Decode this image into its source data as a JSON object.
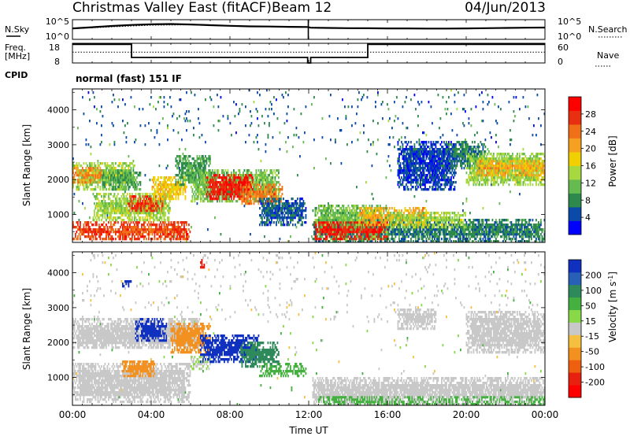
{
  "header": {
    "station": "Christmas Valley East (fitACF)",
    "beam": "Beam 12",
    "date": "04/Jun/2013"
  },
  "chart_data": [
    {
      "type": "line",
      "panel": "noise",
      "left_label": "N.Sky",
      "right_label": "N.Search",
      "left_ticks": [
        "10^5",
        "10^0"
      ],
      "right_ticks": [
        "10^5",
        "10^0"
      ],
      "series": [
        {
          "name": "N.Sky",
          "style": "solid",
          "x": [
            0,
            1,
            2,
            3,
            4,
            5,
            6,
            7,
            8,
            9,
            10,
            11,
            11.95,
            12.1,
            13,
            14,
            15,
            16,
            17,
            18,
            19,
            20,
            21,
            22,
            23,
            24
          ],
          "y": [
            600,
            1200,
            2500,
            4500,
            6500,
            8000,
            6000,
            4000,
            2800,
            2000,
            1800,
            1500,
            1400,
            900,
            800,
            700,
            650,
            600,
            600,
            550,
            550,
            600,
            700,
            800,
            900,
            1000
          ]
        },
        {
          "name": "N.Search",
          "style": "dotted",
          "x": [
            0,
            2,
            4,
            6,
            8,
            10,
            12,
            14,
            16,
            18,
            20,
            22,
            24
          ],
          "y": [
            500,
            1500,
            4000,
            5000,
            3000,
            1800,
            1200,
            700,
            550,
            500,
            550,
            700,
            900
          ]
        }
      ]
    },
    {
      "type": "line",
      "panel": "frequency-nave",
      "left_label": "Freq. [MHz]",
      "left_ticks": [
        18,
        8
      ],
      "right_label": "Nave",
      "right_ticks": [
        60,
        0
      ],
      "extra_label": "CPID",
      "cpid_text": "normal (fast) 151 IF",
      "series": [
        {
          "name": "Freq.",
          "style": "solid",
          "x": [
            0,
            3,
            3,
            11.95,
            11.95,
            12.1,
            12.1,
            15,
            15,
            24
          ],
          "y": [
            17.5,
            17.5,
            10.8,
            10.8,
            8,
            8,
            10.8,
            10.8,
            17.5,
            17.5
          ]
        },
        {
          "name": "Nave",
          "style": "dotted",
          "x": [
            0,
            24
          ],
          "y": [
            33,
            33
          ]
        }
      ]
    },
    {
      "type": "heatmap",
      "panel": "power",
      "x_range_hours": [
        0,
        24
      ],
      "ylabel": "Slant Range [km]",
      "y_ticks": [
        1000,
        2000,
        3000,
        4000
      ],
      "ylim": [
        200,
        4600
      ],
      "colorbar_label": "Power [dB]",
      "colorbar_ticks": [
        4,
        8,
        12,
        16,
        20,
        24,
        28
      ],
      "colorbar_colors": [
        "#0000ff",
        "#0a4aa8",
        "#2e8a4c",
        "#66bb50",
        "#a8d840",
        "#f0d000",
        "#f5a020",
        "#f07018",
        "#e83010",
        "#ff0000"
      ],
      "regions": [
        {
          "t": [
            0.0,
            3.2
          ],
          "r": [
            1700,
            2500
          ],
          "v": 14
        },
        {
          "t": [
            0.0,
            1.5
          ],
          "r": [
            1900,
            2350
          ],
          "v": 22
        },
        {
          "t": [
            1.5,
            3.5
          ],
          "r": [
            1700,
            2300
          ],
          "v": 10
        },
        {
          "t": [
            0.0,
            6.0
          ],
          "r": [
            300,
            800
          ],
          "v": 26
        },
        {
          "t": [
            2.5,
            5.5
          ],
          "r": [
            400,
            700
          ],
          "v": 24
        },
        {
          "t": [
            1.0,
            5.0
          ],
          "r": [
            800,
            1600
          ],
          "v": 14
        },
        {
          "t": [
            2.8,
            4.6
          ],
          "r": [
            1050,
            1550
          ],
          "v": 26
        },
        {
          "t": [
            4.0,
            5.8
          ],
          "r": [
            1400,
            2100
          ],
          "v": 18
        },
        {
          "t": [
            5.2,
            7.0
          ],
          "r": [
            1800,
            2700
          ],
          "v": 10
        },
        {
          "t": [
            6.0,
            10.5
          ],
          "r": [
            1350,
            2300
          ],
          "v": 12
        },
        {
          "t": [
            6.8,
            9.2
          ],
          "r": [
            1450,
            2150
          ],
          "v": 28
        },
        {
          "t": [
            8.5,
            10.7
          ],
          "r": [
            1300,
            1900
          ],
          "v": 23
        },
        {
          "t": [
            9.5,
            12.0
          ],
          "r": [
            700,
            1500
          ],
          "v": 6
        },
        {
          "t": [
            12.2,
            24.0
          ],
          "r": [
            200,
            900
          ],
          "v": 8
        },
        {
          "t": [
            12.3,
            16.0
          ],
          "r": [
            300,
            1300
          ],
          "v": 12
        },
        {
          "t": [
            12.3,
            16.0
          ],
          "r": [
            300,
            800
          ],
          "v": 28
        },
        {
          "t": [
            14.5,
            18.0
          ],
          "r": [
            700,
            1200
          ],
          "v": 20
        },
        {
          "t": [
            16.0,
            20.0
          ],
          "r": [
            600,
            1100
          ],
          "v": 14
        },
        {
          "t": [
            16.5,
            19.5
          ],
          "r": [
            1700,
            3100
          ],
          "v": 5
        },
        {
          "t": [
            19.0,
            21.0
          ],
          "r": [
            2300,
            3100
          ],
          "v": 8
        },
        {
          "t": [
            20.0,
            24.0
          ],
          "r": [
            1800,
            2800
          ],
          "v": 14
        },
        {
          "t": [
            20.5,
            24.0
          ],
          "r": [
            2100,
            2600
          ],
          "v": 20
        },
        {
          "t": [
            0.5,
            24.0
          ],
          "r": [
            3000,
            4500
          ],
          "v": 6,
          "sparse": true
        }
      ]
    },
    {
      "type": "heatmap",
      "panel": "velocity",
      "x_range_hours": [
        0,
        24
      ],
      "xlabel": "Time UT",
      "x_ticks": [
        "00:00",
        "04:00",
        "08:00",
        "12:00",
        "16:00",
        "20:00",
        "00:00"
      ],
      "ylabel": "Slant Range [km]",
      "y_ticks": [
        1000,
        2000,
        3000,
        4000
      ],
      "ylim": [
        200,
        4600
      ],
      "colorbar_label": "Velocity [m s^-1]",
      "colorbar_ticks": [
        200,
        100,
        50,
        15,
        -15,
        -50,
        -100,
        -200
      ],
      "colorbar_colors": [
        "#1030c0",
        "#2860b8",
        "#2e8a5a",
        "#44b040",
        "#88d848",
        "#c8c8c8",
        "#f5c040",
        "#f29020",
        "#ee6010",
        "#e82010",
        "#ff0000"
      ],
      "regions": [
        {
          "t": [
            0.0,
            6.5
          ],
          "r": [
            1800,
            2700
          ],
          "v": 0
        },
        {
          "t": [
            0.0,
            6.0
          ],
          "r": [
            300,
            1400
          ],
          "v": 0
        },
        {
          "t": [
            3.2,
            4.8
          ],
          "r": [
            2000,
            2700
          ],
          "v": 180
        },
        {
          "t": [
            2.5,
            4.2
          ],
          "r": [
            1000,
            1500
          ],
          "v": -60
        },
        {
          "t": [
            5.0,
            7.0
          ],
          "r": [
            1700,
            2600
          ],
          "v": -70
        },
        {
          "t": [
            6.0,
            7.0
          ],
          "r": [
            1200,
            1600
          ],
          "v": 5
        },
        {
          "t": [
            6.5,
            9.5
          ],
          "r": [
            1450,
            2200
          ],
          "v": 190
        },
        {
          "t": [
            8.5,
            10.5
          ],
          "r": [
            1300,
            2000
          ],
          "v": 55
        },
        {
          "t": [
            9.5,
            12.0
          ],
          "r": [
            1000,
            1400
          ],
          "v": 40
        },
        {
          "t": [
            12.2,
            24.0
          ],
          "r": [
            200,
            1000
          ],
          "v": 0
        },
        {
          "t": [
            12.5,
            24.0
          ],
          "r": [
            200,
            450
          ],
          "v": 45
        },
        {
          "t": [
            20.0,
            24.0
          ],
          "r": [
            1700,
            2900
          ],
          "v": 0
        },
        {
          "t": [
            16.5,
            18.5
          ],
          "r": [
            2400,
            3000
          ],
          "v": 0
        },
        {
          "t": [
            2.5,
            3.0
          ],
          "r": [
            3600,
            3800
          ],
          "v": 180
        },
        {
          "t": [
            6.5,
            6.8
          ],
          "r": [
            4100,
            4400
          ],
          "v": -200
        },
        {
          "t": [
            0.5,
            24.0
          ],
          "r": [
            2600,
            4500
          ],
          "v": 0,
          "sparse": true
        }
      ]
    }
  ]
}
